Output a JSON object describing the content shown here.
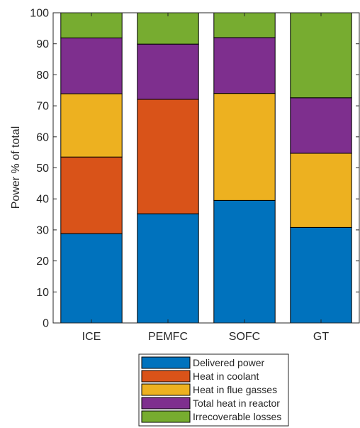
{
  "chart_data": {
    "type": "bar",
    "stacked": true,
    "categories": [
      "ICE",
      "PEMFC",
      "SOFC",
      "GT"
    ],
    "ylabel": "Power % of total",
    "ylim": [
      0,
      100
    ],
    "yticks": [
      0,
      10,
      20,
      30,
      40,
      50,
      60,
      70,
      80,
      90,
      100
    ],
    "grid": false,
    "legend_position": "bottom",
    "series": [
      {
        "name": "Delivered power",
        "color": "#0072BD",
        "values": [
          28.8,
          35.2,
          39.5,
          30.8
        ]
      },
      {
        "name": "Heat in coolant",
        "color": "#D95319",
        "values": [
          24.7,
          36.9,
          0,
          0
        ]
      },
      {
        "name": "Heat in flue gasses",
        "color": "#EDB120",
        "values": [
          20.4,
          0,
          34.5,
          23.9
        ]
      },
      {
        "name": "Total heat in reactor",
        "color": "#7E2F8E",
        "values": [
          18.0,
          17.8,
          18.0,
          17.9
        ]
      },
      {
        "name": "Irrecoverable losses",
        "color": "#77AC30",
        "values": [
          8.1,
          10.1,
          8.0,
          27.4
        ]
      }
    ]
  }
}
